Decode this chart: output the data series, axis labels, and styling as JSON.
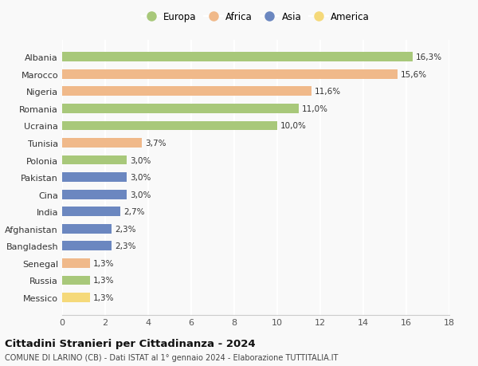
{
  "categories": [
    "Albania",
    "Marocco",
    "Nigeria",
    "Romania",
    "Ucraina",
    "Tunisia",
    "Polonia",
    "Pakistan",
    "Cina",
    "India",
    "Afghanistan",
    "Bangladesh",
    "Senegal",
    "Russia",
    "Messico"
  ],
  "values": [
    16.3,
    15.6,
    11.6,
    11.0,
    10.0,
    3.7,
    3.0,
    3.0,
    3.0,
    2.7,
    2.3,
    2.3,
    1.3,
    1.3,
    1.3
  ],
  "labels": [
    "16,3%",
    "15,6%",
    "11,6%",
    "11,0%",
    "10,0%",
    "3,7%",
    "3,0%",
    "3,0%",
    "3,0%",
    "2,7%",
    "2,3%",
    "2,3%",
    "1,3%",
    "1,3%",
    "1,3%"
  ],
  "continent": [
    "Europa",
    "Africa",
    "Africa",
    "Europa",
    "Europa",
    "Africa",
    "Europa",
    "Asia",
    "Asia",
    "Asia",
    "Asia",
    "Asia",
    "Africa",
    "Europa",
    "America"
  ],
  "colors": {
    "Europa": "#a8c87a",
    "Africa": "#f0b98a",
    "Asia": "#6b87c0",
    "America": "#f5d97a"
  },
  "legend_order": [
    "Europa",
    "Africa",
    "Asia",
    "America"
  ],
  "title": "Cittadini Stranieri per Cittadinanza - 2024",
  "subtitle": "COMUNE DI LARINO (CB) - Dati ISTAT al 1° gennaio 2024 - Elaborazione TUTTITALIA.IT",
  "xlim": [
    0,
    18
  ],
  "xticks": [
    0,
    2,
    4,
    6,
    8,
    10,
    12,
    14,
    16,
    18
  ],
  "background_color": "#f9f9f9",
  "grid_color": "#ffffff",
  "bar_height": 0.55
}
